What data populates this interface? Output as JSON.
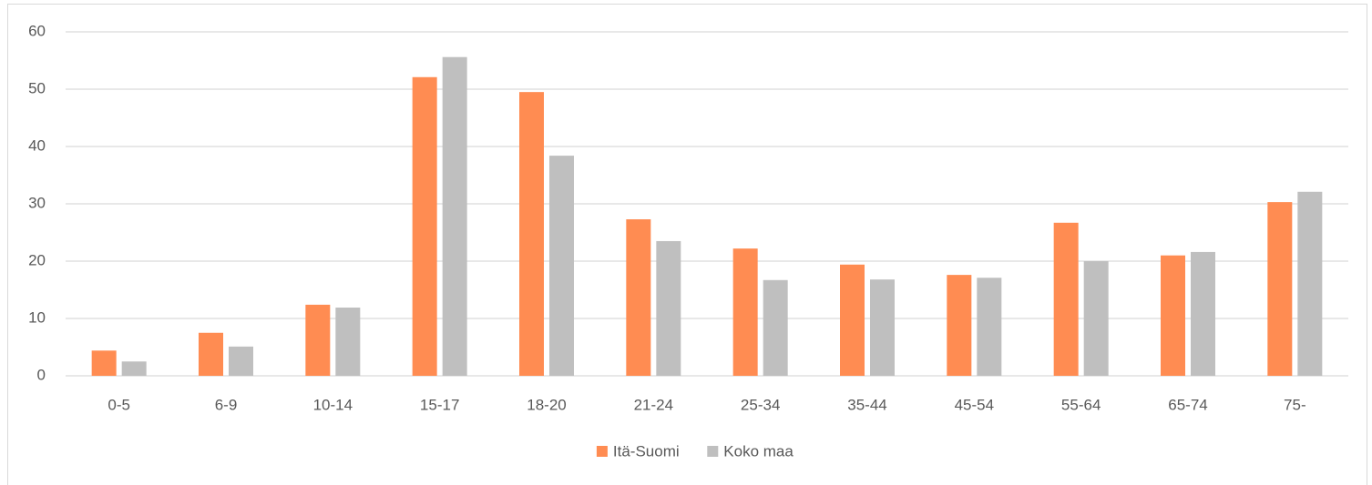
{
  "chart_data": {
    "type": "bar",
    "categories": [
      "0-5",
      "6-9",
      "10-14",
      "15-17",
      "18-20",
      "21-24",
      "25-34",
      "35-44",
      "45-54",
      "55-64",
      "65-74",
      "75-"
    ],
    "series": [
      {
        "name": "Itä-Suomi",
        "color": "#ff8c52",
        "values": [
          4.4,
          7.5,
          12.4,
          52.1,
          49.5,
          27.3,
          22.2,
          19.4,
          17.6,
          26.7,
          21.0,
          30.3
        ]
      },
      {
        "name": "Koko maa",
        "color": "#bfbfbf",
        "values": [
          2.5,
          5.1,
          11.9,
          55.6,
          38.4,
          23.5,
          16.7,
          16.8,
          17.1,
          20.0,
          21.6,
          32.1
        ]
      }
    ],
    "ylim": [
      0,
      60
    ],
    "yticks": [
      0,
      10,
      20,
      30,
      40,
      50,
      60
    ],
    "grid": true,
    "legend": "bottom"
  }
}
